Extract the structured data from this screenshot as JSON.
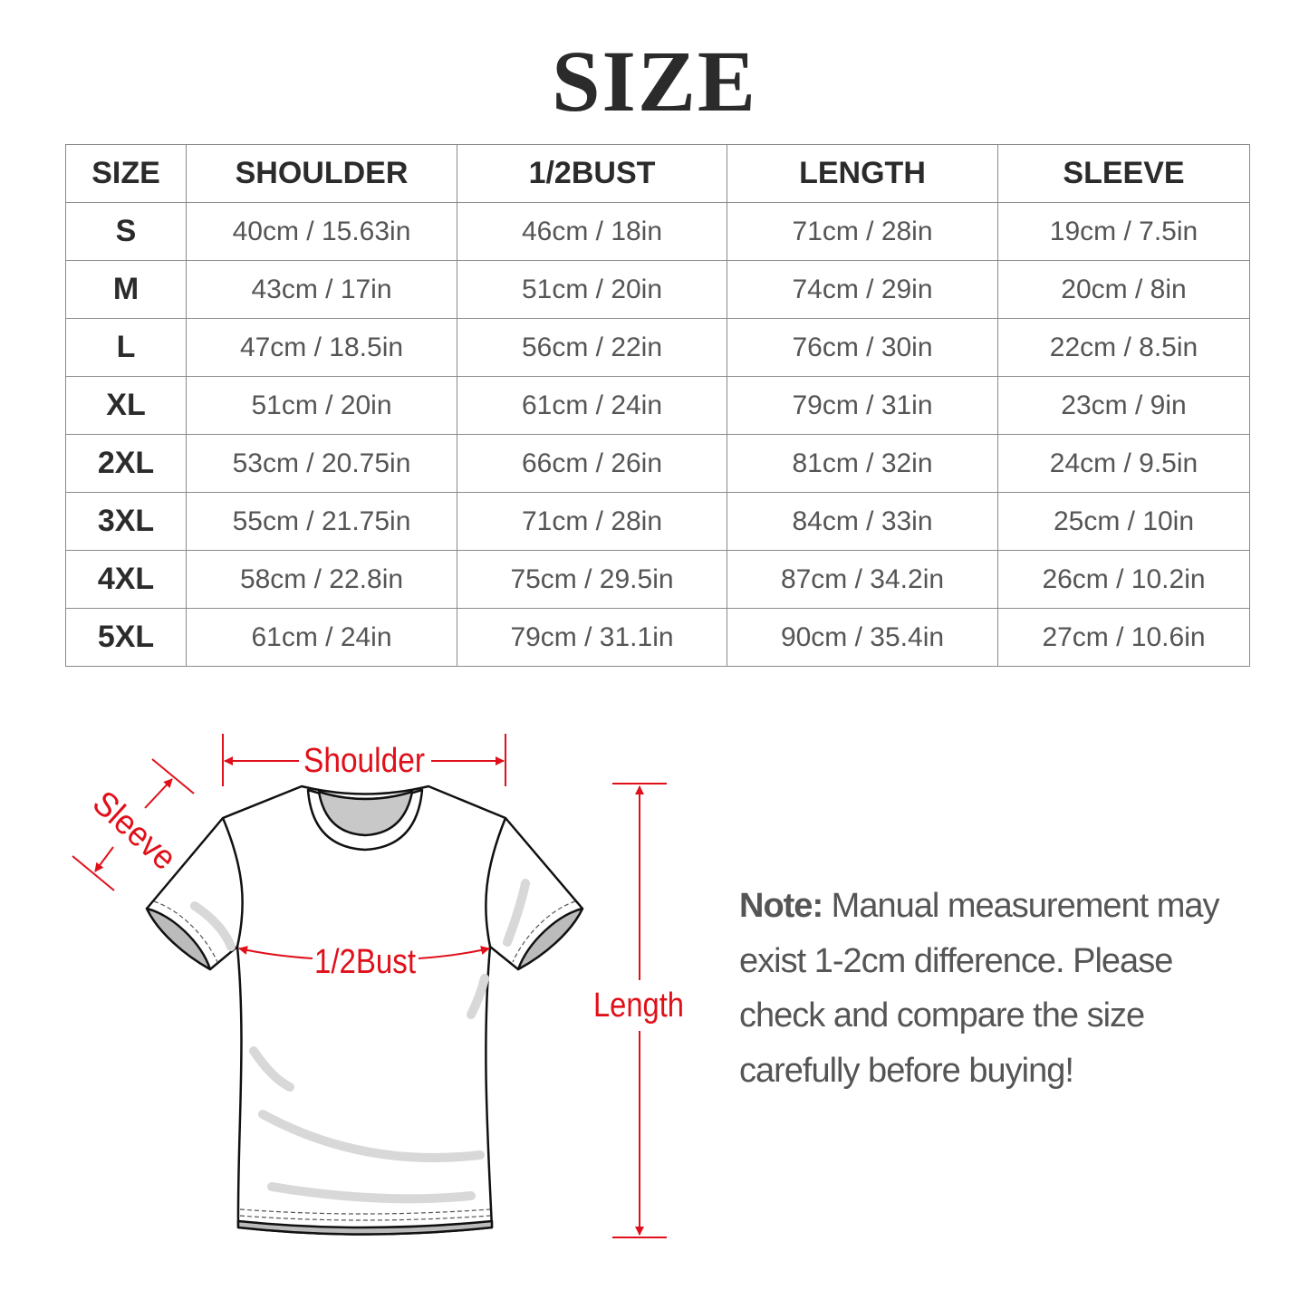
{
  "title": "SIZE",
  "table": {
    "headers": [
      "SIZE",
      "SHOULDER",
      "1/2BUST",
      "LENGTH",
      "SLEEVE"
    ],
    "rows": [
      [
        "S",
        "40cm / 15.63in",
        "46cm / 18in",
        "71cm / 28in",
        "19cm / 7.5in"
      ],
      [
        "M",
        "43cm / 17in",
        "51cm / 20in",
        "74cm / 29in",
        "20cm / 8in"
      ],
      [
        "L",
        "47cm / 18.5in",
        "56cm / 22in",
        "76cm / 30in",
        "22cm / 8.5in"
      ],
      [
        "XL",
        "51cm / 20in",
        "61cm / 24in",
        "79cm / 31in",
        "23cm / 9in"
      ],
      [
        "2XL",
        "53cm / 20.75in",
        "66cm / 26in",
        "81cm / 32in",
        "24cm / 9.5in"
      ],
      [
        "3XL",
        "55cm / 21.75in",
        "71cm / 28in",
        "84cm / 33in",
        "25cm / 10in"
      ],
      [
        "4XL",
        "58cm / 22.8in",
        "75cm / 29.5in",
        "87cm / 34.2in",
        "26cm / 10.2in"
      ],
      [
        "5XL",
        "61cm / 24in",
        "79cm / 31.1in",
        "90cm / 35.4in",
        "27cm / 10.6in"
      ]
    ]
  },
  "diagram": {
    "shoulder": "Shoulder",
    "sleeve": "Sleeve",
    "bust": "1/2Bust",
    "length": "Length",
    "accent": "#e0101a"
  },
  "note": {
    "label": "Note:",
    "text": " Manual measurement may exist 1-2cm difference. Please check and compare the size carefully before buying!"
  }
}
